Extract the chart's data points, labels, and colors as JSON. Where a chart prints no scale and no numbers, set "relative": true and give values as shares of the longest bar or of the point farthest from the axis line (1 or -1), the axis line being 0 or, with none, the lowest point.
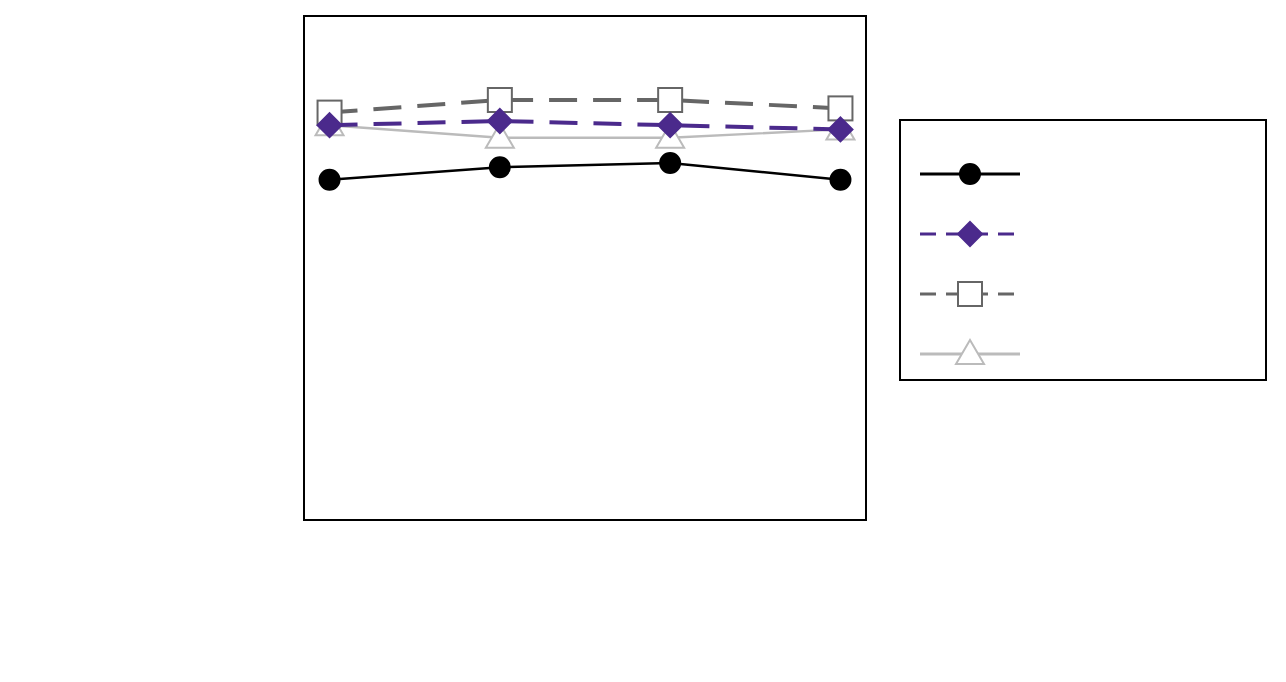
{
  "chart_data": {
    "type": "line",
    "relative": true,
    "categories": [
      null,
      null,
      null,
      null
    ],
    "series": [
      {
        "color": "#000000",
        "marker": "circle",
        "line_style": "solid",
        "values": [
          0.81,
          0.84,
          0.85,
          0.81
        ]
      },
      {
        "color": "#4b2a8c",
        "marker": "diamond",
        "line_style": "dashed",
        "values": [
          0.94,
          0.95,
          0.94,
          0.93
        ]
      },
      {
        "color": "#666666",
        "marker": "square",
        "line_style": "dashed",
        "values": [
          0.97,
          1,
          1,
          0.98
        ]
      },
      {
        "color": "#bbbbbb",
        "marker": "triangle",
        "line_style": "solid",
        "values": [
          0.94,
          0.91,
          0.91,
          0.93
        ]
      }
    ]
  }
}
